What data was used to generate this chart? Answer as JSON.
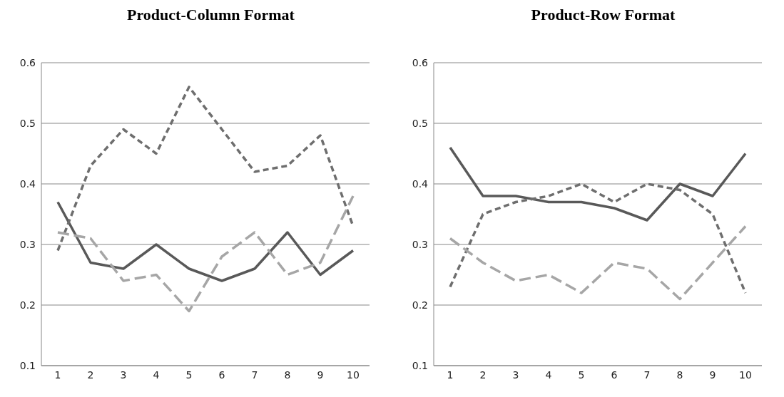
{
  "chart_data": [
    {
      "type": "line",
      "title": "Product-Column Format",
      "categories": [
        "1",
        "2",
        "3",
        "4",
        "5",
        "6",
        "7",
        "8",
        "9",
        "10"
      ],
      "ylim": [
        0.1,
        0.6
      ],
      "yticks": [
        0.1,
        0.2,
        0.3,
        0.4,
        0.5,
        0.6
      ],
      "grid": "y",
      "marker": "none",
      "series": [
        {
          "color": "#595959",
          "line_style": "solid",
          "values": [
            0.37,
            0.27,
            0.26,
            0.3,
            0.26,
            0.24,
            0.26,
            0.32,
            0.25,
            0.29
          ]
        },
        {
          "color": "#6e6e6e",
          "line_style": "dashed",
          "values": [
            0.29,
            0.43,
            0.49,
            0.45,
            0.56,
            0.49,
            0.42,
            0.43,
            0.48,
            0.33
          ]
        },
        {
          "color": "#a6a6a6",
          "line_style": "dashed",
          "values": [
            0.32,
            0.31,
            0.24,
            0.25,
            0.19,
            0.28,
            0.32,
            0.25,
            0.27,
            0.38
          ]
        }
      ]
    },
    {
      "type": "line",
      "title": "Product-Row Format",
      "categories": [
        "1",
        "2",
        "3",
        "4",
        "5",
        "6",
        "7",
        "8",
        "9",
        "10"
      ],
      "ylim": [
        0.1,
        0.6
      ],
      "yticks": [
        0.1,
        0.2,
        0.3,
        0.4,
        0.5,
        0.6
      ],
      "grid": "y",
      "marker": "none",
      "series": [
        {
          "color": "#595959",
          "line_style": "solid",
          "values": [
            0.46,
            0.38,
            0.38,
            0.37,
            0.37,
            0.36,
            0.34,
            0.4,
            0.38,
            0.45
          ]
        },
        {
          "color": "#6e6e6e",
          "line_style": "dashed",
          "values": [
            0.23,
            0.35,
            0.37,
            0.38,
            0.4,
            0.37,
            0.4,
            0.39,
            0.35,
            0.22
          ]
        },
        {
          "color": "#a6a6a6",
          "line_style": "dashed",
          "values": [
            0.31,
            0.27,
            0.24,
            0.25,
            0.22,
            0.27,
            0.26,
            0.21,
            0.27,
            0.33
          ]
        }
      ]
    }
  ]
}
